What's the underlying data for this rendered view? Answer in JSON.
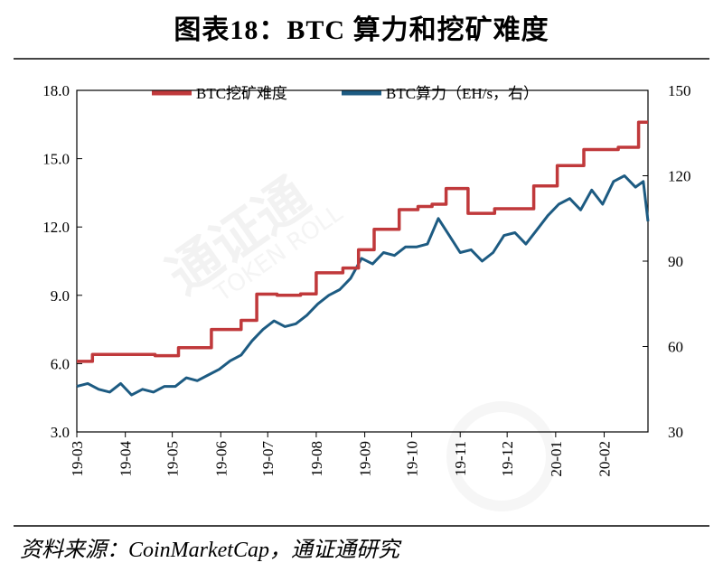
{
  "title": "图表18：BTC 算力和挖矿难度",
  "source": "资料来源：CoinMarketCap，通证通研究",
  "colors": {
    "difficulty": "#c0393b",
    "hashrate": "#1d5b82"
  },
  "chart_data": {
    "type": "line",
    "title": "图表18：BTC 算力和挖矿难度",
    "x_categories": [
      "19-03",
      "19-04",
      "19-05",
      "19-06",
      "19-07",
      "19-08",
      "19-09",
      "19-10",
      "19-11",
      "19-12",
      "20-01",
      "20-02"
    ],
    "left_axis": {
      "ylim": [
        3.0,
        18.0
      ],
      "ticks": [
        "18.0",
        "15.0",
        "12.0",
        "9.0",
        "6.0",
        "3.0"
      ],
      "tick_values": [
        18,
        15,
        12,
        9,
        6,
        3
      ]
    },
    "right_axis": {
      "ylim": [
        30,
        150
      ],
      "ticks": [
        "150",
        "120",
        "90",
        "60",
        "30"
      ],
      "tick_values": [
        150,
        120,
        90,
        60,
        30
      ]
    },
    "legend_placement": "top-center",
    "grid": false,
    "series": [
      {
        "name": "BTC挖矿难度",
        "axis": "left",
        "step": true,
        "points": [
          [
            "2019-03-01",
            6.1
          ],
          [
            "2019-03-11",
            6.4
          ],
          [
            "2019-04-20",
            6.35
          ],
          [
            "2019-05-05",
            6.7
          ],
          [
            "2019-05-26",
            7.5
          ],
          [
            "2019-06-14",
            7.9
          ],
          [
            "2019-06-24",
            9.05
          ],
          [
            "2019-07-07",
            9.0
          ],
          [
            "2019-07-22",
            9.06
          ],
          [
            "2019-08-01",
            9.99
          ],
          [
            "2019-08-18",
            10.2
          ],
          [
            "2019-08-28",
            11.0
          ],
          [
            "2019-09-07",
            11.9
          ],
          [
            "2019-09-23",
            12.76
          ],
          [
            "2019-10-05",
            12.9
          ],
          [
            "2019-10-14",
            13.0
          ],
          [
            "2019-10-23",
            13.69
          ],
          [
            "2019-11-06",
            12.6
          ],
          [
            "2019-11-23",
            12.8
          ],
          [
            "2019-12-03",
            12.8
          ],
          [
            "2019-12-18",
            13.8
          ],
          [
            "2020-01-02",
            14.7
          ],
          [
            "2020-01-19",
            15.4
          ],
          [
            "2020-02-10",
            15.5
          ],
          [
            "2020-02-23",
            16.6
          ],
          [
            "2020-02-29",
            16.6
          ]
        ]
      },
      {
        "name": "BTC算力（EH/s，右）",
        "axis": "right",
        "step": false,
        "points": [
          [
            "2019-03-01",
            46
          ],
          [
            "2019-03-08",
            47
          ],
          [
            "2019-03-15",
            45
          ],
          [
            "2019-03-22",
            44
          ],
          [
            "2019-03-29",
            47
          ],
          [
            "2019-04-05",
            43
          ],
          [
            "2019-04-12",
            45
          ],
          [
            "2019-04-19",
            44
          ],
          [
            "2019-04-26",
            46
          ],
          [
            "2019-05-03",
            46
          ],
          [
            "2019-05-10",
            49
          ],
          [
            "2019-05-17",
            48
          ],
          [
            "2019-05-24",
            50
          ],
          [
            "2019-05-31",
            52
          ],
          [
            "2019-06-07",
            55
          ],
          [
            "2019-06-14",
            57
          ],
          [
            "2019-06-21",
            62
          ],
          [
            "2019-06-28",
            66
          ],
          [
            "2019-07-05",
            69
          ],
          [
            "2019-07-12",
            67
          ],
          [
            "2019-07-19",
            68
          ],
          [
            "2019-07-26",
            71
          ],
          [
            "2019-08-02",
            75
          ],
          [
            "2019-08-09",
            78
          ],
          [
            "2019-08-16",
            80
          ],
          [
            "2019-08-23",
            84
          ],
          [
            "2019-08-30",
            91
          ],
          [
            "2019-09-06",
            89
          ],
          [
            "2019-09-13",
            93
          ],
          [
            "2019-09-20",
            92
          ],
          [
            "2019-09-27",
            95
          ],
          [
            "2019-10-04",
            95
          ],
          [
            "2019-10-11",
            96
          ],
          [
            "2019-10-18",
            105
          ],
          [
            "2019-10-25",
            99
          ],
          [
            "2019-11-01",
            93
          ],
          [
            "2019-11-08",
            94
          ],
          [
            "2019-11-15",
            90
          ],
          [
            "2019-11-22",
            93
          ],
          [
            "2019-11-29",
            99
          ],
          [
            "2019-12-06",
            100
          ],
          [
            "2019-12-13",
            96
          ],
          [
            "2019-12-20",
            101
          ],
          [
            "2019-12-27",
            106
          ],
          [
            "2020-01-03",
            110
          ],
          [
            "2020-01-10",
            112
          ],
          [
            "2020-01-17",
            108
          ],
          [
            "2020-01-24",
            115
          ],
          [
            "2020-01-31",
            110
          ],
          [
            "2020-02-07",
            118
          ],
          [
            "2020-02-14",
            120
          ],
          [
            "2020-02-21",
            116
          ],
          [
            "2020-02-26",
            118
          ],
          [
            "2020-02-29",
            104
          ]
        ]
      }
    ]
  }
}
